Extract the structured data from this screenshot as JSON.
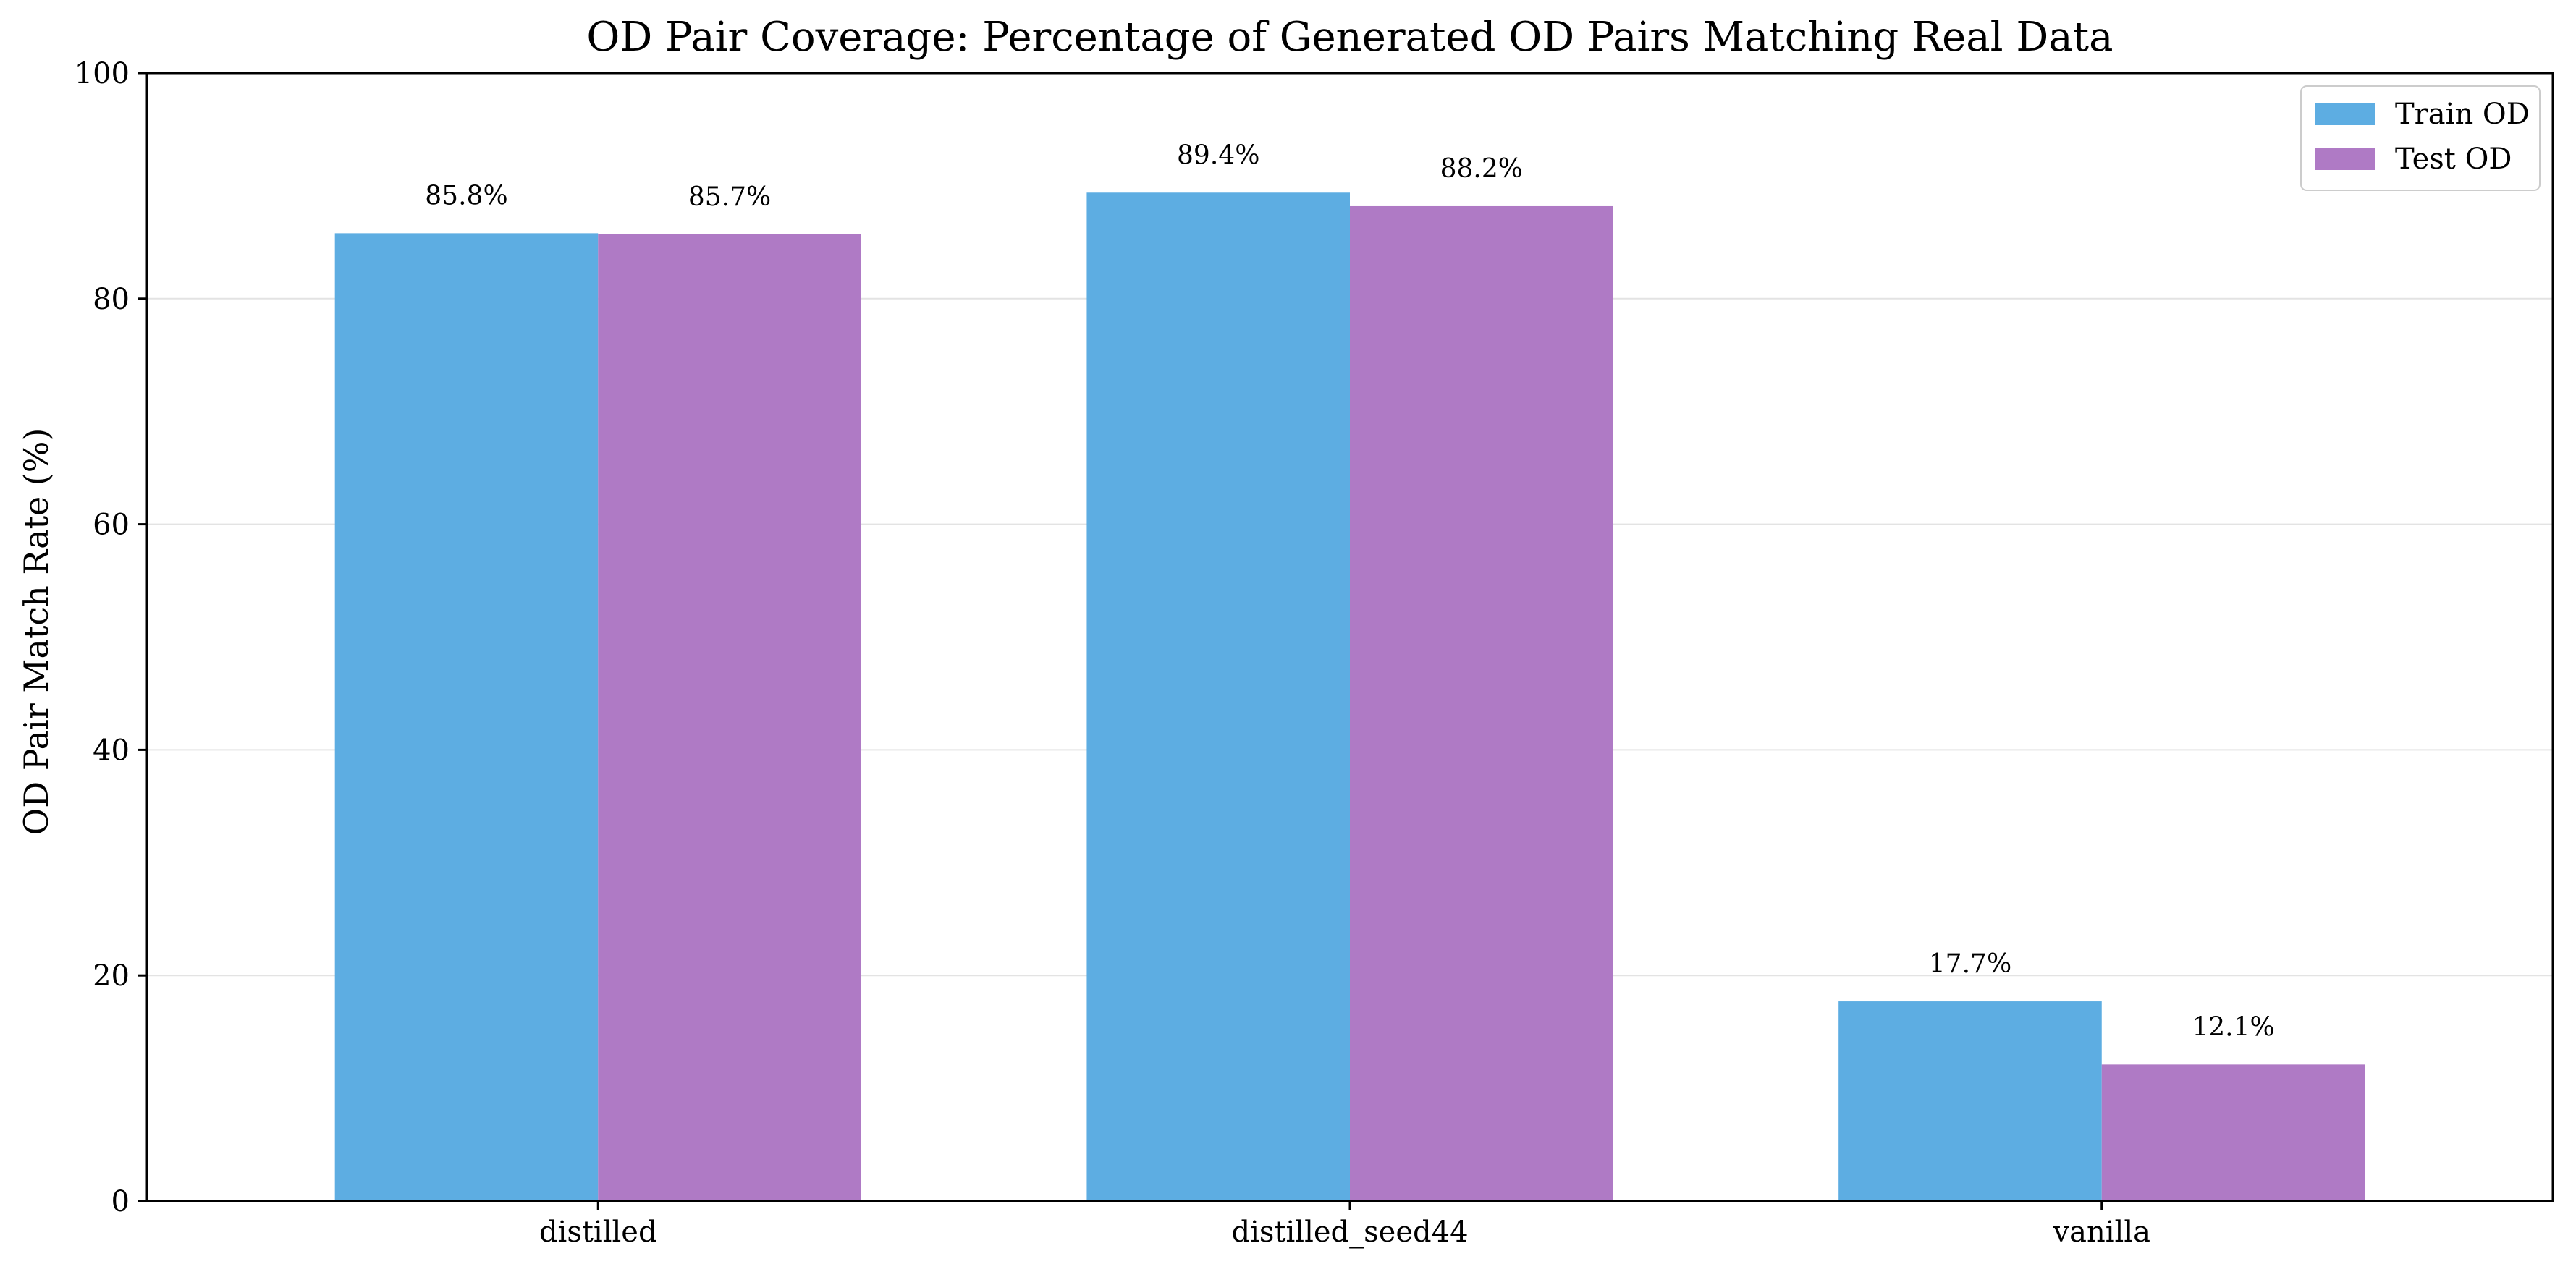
{
  "chart_data": {
    "type": "bar",
    "title": "OD Pair Coverage: Percentage of Generated OD Pairs Matching Real Data",
    "xlabel": "",
    "ylabel": "OD Pair Match Rate (%)",
    "ylim": [
      0,
      100
    ],
    "yticks": [
      0,
      20,
      40,
      60,
      80,
      100
    ],
    "ytick_labels": [
      "0",
      "20",
      "40",
      "60",
      "80",
      "100"
    ],
    "categories": [
      "distilled",
      "distilled_seed44",
      "vanilla"
    ],
    "series": [
      {
        "name": "Train OD",
        "color": "#5dade2",
        "values": [
          85.8,
          89.4,
          17.7
        ],
        "labels": [
          "85.8%",
          "89.4%",
          "17.7%"
        ]
      },
      {
        "name": "Test OD",
        "color": "#af7ac5",
        "values": [
          85.7,
          88.2,
          12.1
        ],
        "labels": [
          "85.7%",
          "88.2%",
          "12.1%"
        ]
      }
    ],
    "grid": "y-major",
    "legend_position": "top-right"
  }
}
